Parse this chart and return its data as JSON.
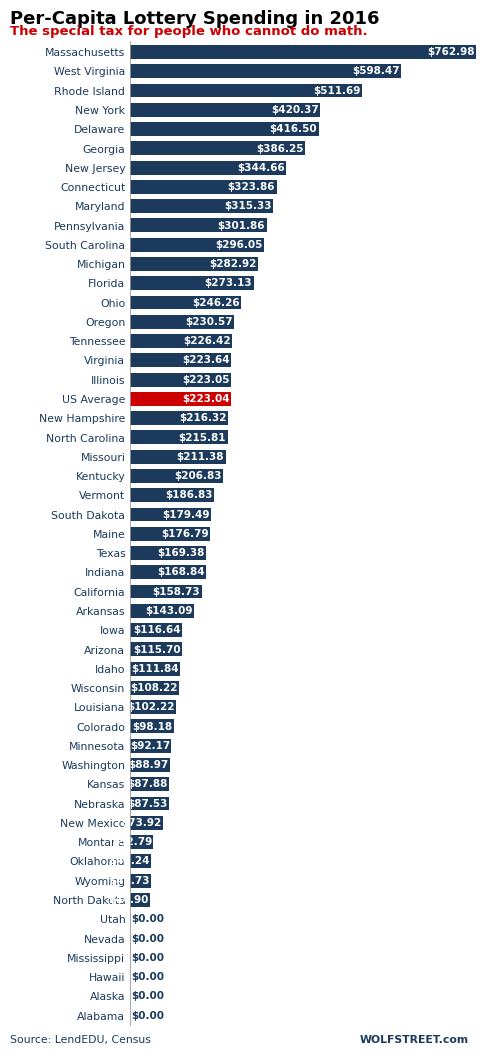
{
  "title": "Per-Capita Lottery Spending in 2016",
  "subtitle": "The special tax for people who cannot do math.",
  "source_left": "Source: LendEDU, Census",
  "source_right": "WOLFSTREET.com",
  "categories": [
    "Massachusetts",
    "West Virginia",
    "Rhode Island",
    "New York",
    "Delaware",
    "Georgia",
    "New Jersey",
    "Connecticut",
    "Maryland",
    "Pennsylvania",
    "South Carolina",
    "Michigan",
    "Florida",
    "Ohio",
    "Oregon",
    "Tennessee",
    "Virginia",
    "Illinois",
    "US Average",
    "New Hampshire",
    "North Carolina",
    "Missouri",
    "Kentucky",
    "Vermont",
    "South Dakota",
    "Maine",
    "Texas",
    "Indiana",
    "California",
    "Arkansas",
    "Iowa",
    "Arizona",
    "Idaho",
    "Wisconsin",
    "Louisiana",
    "Colorado",
    "Minnesota",
    "Washington",
    "Kansas",
    "Nebraska",
    "New Mexico",
    "Montana",
    "Oklahoma",
    "Wyoming",
    "North Dakota",
    "Utah",
    "Nevada",
    "Mississippi",
    "Hawaii",
    "Alaska",
    "Alabama"
  ],
  "values": [
    762.98,
    598.47,
    511.69,
    420.37,
    416.5,
    386.25,
    344.66,
    323.86,
    315.33,
    301.86,
    296.05,
    282.92,
    273.13,
    246.26,
    230.57,
    226.42,
    223.64,
    223.05,
    223.04,
    216.32,
    215.81,
    211.38,
    206.83,
    186.83,
    179.49,
    176.79,
    169.38,
    168.84,
    158.73,
    143.09,
    116.64,
    115.7,
    111.84,
    108.22,
    102.22,
    98.18,
    92.17,
    88.97,
    87.88,
    87.53,
    73.92,
    52.79,
    48.24,
    46.73,
    44.9,
    0.0,
    0.0,
    0.0,
    0.0,
    0.0,
    0.0
  ],
  "bar_color_default": "#1b3a5c",
  "bar_color_highlight": "#cc0000",
  "highlight_index": 18,
  "value_color": "#ffffff",
  "label_color": "#1b3a5c",
  "zero_label_color": "#1b3a5c",
  "title_color": "#000000",
  "subtitle_color": "#cc0000",
  "source_color": "#1b3a5c",
  "background_color": "#ffffff",
  "bar_height": 0.72,
  "figwidth": 4.78,
  "figheight": 10.52,
  "dpi": 100
}
